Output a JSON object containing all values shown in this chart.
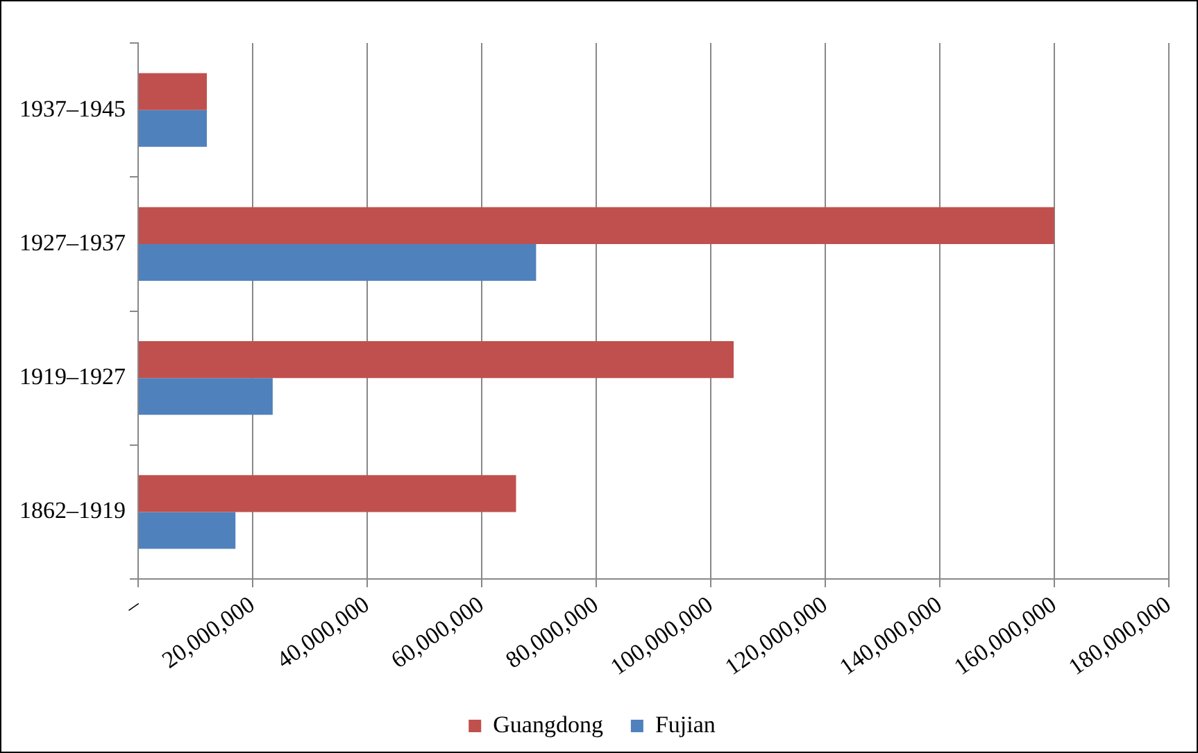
{
  "chart_data": {
    "type": "bar",
    "orientation": "horizontal",
    "categories": [
      "1937–1945",
      "1927–1937",
      "1919–1927",
      "1862–1919"
    ],
    "series": [
      {
        "name": "Guangdong",
        "color": "#c0504d",
        "values": [
          12000000,
          160000000,
          104000000,
          66000000
        ]
      },
      {
        "name": "Fujian",
        "color": "#4f81bd",
        "values": [
          12000000,
          69500000,
          23500000,
          17000000
        ]
      }
    ],
    "xlim": [
      0,
      180000000
    ],
    "xticks": [
      {
        "value": 0,
        "label": "–"
      },
      {
        "value": 20000000,
        "label": "20,000,000"
      },
      {
        "value": 40000000,
        "label": "40,000,000"
      },
      {
        "value": 60000000,
        "label": "60,000,000"
      },
      {
        "value": 80000000,
        "label": "80,000,000"
      },
      {
        "value": 100000000,
        "label": "100,000,000"
      },
      {
        "value": 120000000,
        "label": "120,000,000"
      },
      {
        "value": 140000000,
        "label": "140,000,000"
      },
      {
        "value": 160000000,
        "label": "160,000,000"
      },
      {
        "value": 180000000,
        "label": "180,000,000"
      }
    ],
    "grid": "x",
    "legend": "bottom"
  }
}
